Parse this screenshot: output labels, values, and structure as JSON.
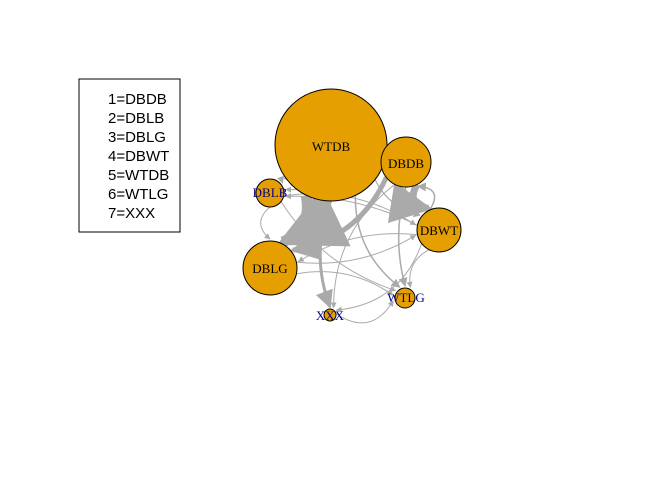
{
  "legend": {
    "entries": [
      "1=DBDB",
      "2=DBLB",
      "3=DBLG",
      "4=DBWT",
      "5=WTDB",
      "6=WTLG",
      "7=XXX"
    ]
  },
  "graph": {
    "colors": {
      "node_fill": "#E69F00",
      "node_stroke": "#000000",
      "edge": "#AAAAAA",
      "label_dark": "#000000",
      "label_blue": "#00008B"
    },
    "nodes": [
      {
        "id": "WTDB",
        "label": "WTDB",
        "label_color": "dark"
      },
      {
        "id": "DBDB",
        "label": "DBDB",
        "label_color": "dark"
      },
      {
        "id": "DBLB",
        "label": "DBLB",
        "label_color": "blue"
      },
      {
        "id": "DBWT",
        "label": "DBWT",
        "label_color": "dark"
      },
      {
        "id": "DBLG",
        "label": "DBLG",
        "label_color": "dark"
      },
      {
        "id": "WTLG",
        "label": "WTLG",
        "label_color": "blue"
      },
      {
        "id": "XXX",
        "label": "XXX",
        "label_color": "blue"
      }
    ],
    "edges": [
      {
        "from": "WTDB",
        "to": "DBLG"
      },
      {
        "from": "DBDB",
        "to": "DBWT"
      },
      {
        "from": "DBDB",
        "to": "DBLG"
      },
      {
        "from": "WTDB",
        "to": "XXX"
      },
      {
        "from": "WTDB",
        "to": "WTLG"
      },
      {
        "from": "WTDB",
        "to": "DBLB"
      },
      {
        "from": "WTDB",
        "to": "DBWT"
      },
      {
        "from": "DBDB",
        "to": "WTLG"
      },
      {
        "from": "DBDB",
        "to": "DBLB"
      },
      {
        "from": "DBDB",
        "to": "XXX"
      },
      {
        "from": "DBLB",
        "to": "DBWT"
      },
      {
        "from": "DBLB",
        "to": "WTLG"
      },
      {
        "from": "DBLG",
        "to": "DBWT"
      },
      {
        "from": "DBWT",
        "to": "DBLG"
      },
      {
        "from": "DBWT",
        "to": "DBDB"
      },
      {
        "from": "DBWT",
        "to": "WTLG"
      },
      {
        "from": "DBWT",
        "to": "XXX"
      },
      {
        "from": "XXX",
        "to": "WTLG"
      },
      {
        "from": "DBLG",
        "to": "WTLG"
      },
      {
        "from": "DBLB",
        "to": "DBLG"
      },
      {
        "from": "DBWT",
        "to": "DBLB"
      }
    ]
  }
}
